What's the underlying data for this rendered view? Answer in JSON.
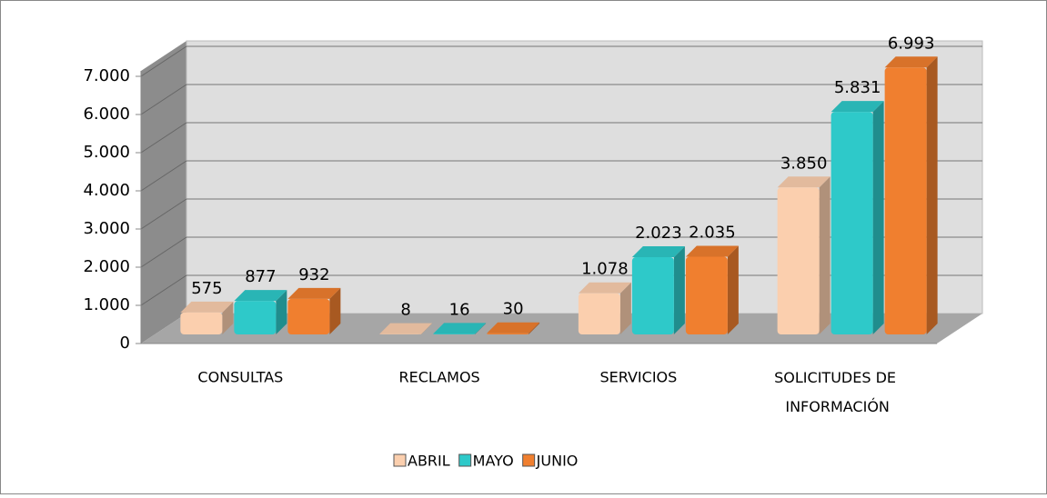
{
  "chart_data": {
    "type": "bar3d",
    "categories": [
      "CONSULTAS",
      "RECLAMOS",
      "SERVICIOS",
      "SOLICITUDES DE INFORMACIÓN"
    ],
    "series": [
      {
        "name": "ABRIL",
        "color": "#fbcfae",
        "values": [
          575,
          8,
          1078,
          3850
        ],
        "value_labels": [
          "575",
          "8",
          "1.078",
          "3.850"
        ]
      },
      {
        "name": "MAYO",
        "color": "#2ec9c9",
        "values": [
          877,
          16,
          2023,
          5831
        ],
        "value_labels": [
          "877",
          "16",
          "2.023",
          "5.831"
        ]
      },
      {
        "name": "JUNIO",
        "color": "#f07f2f",
        "values": [
          932,
          30,
          2035,
          6993
        ],
        "value_labels": [
          "932",
          "30",
          "2.035",
          "6.993"
        ]
      }
    ],
    "ylim": [
      0,
      7000
    ],
    "yticks": [
      0,
      {
        "value": 1000,
        "label": "1.000"
      },
      {
        "value": 2000,
        "label": "2.000"
      },
      {
        "value": 3000,
        "label": "3.000"
      },
      {
        "value": 4000,
        "label": "4.000"
      },
      {
        "value": 5000,
        "label": "5.000"
      },
      {
        "value": 6000,
        "label": "6.000"
      },
      {
        "value": 7000,
        "label": "7.000"
      }
    ],
    "grid": true,
    "legend": "bottom"
  }
}
